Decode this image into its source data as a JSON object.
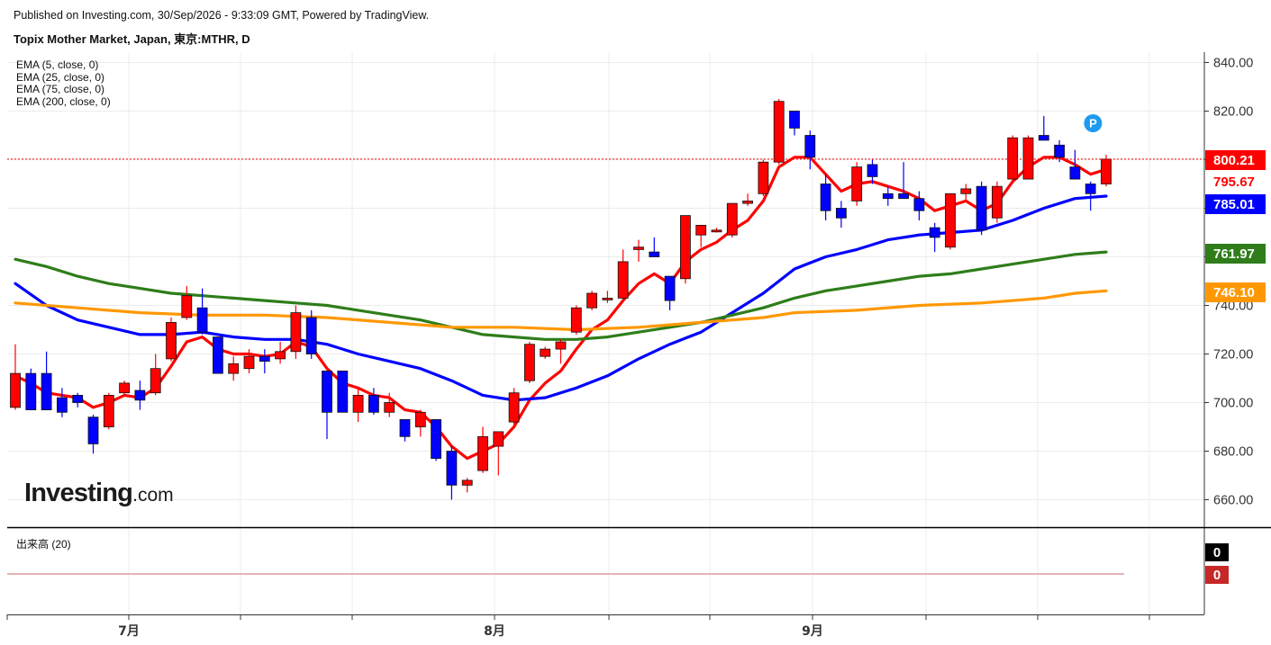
{
  "header": {
    "published": "Published on Investing.com, 30/Sep/2026 - 9:33:09 GMT, Powered by TradingView.",
    "title": "Topix Mother Market, Japan, 東京:MTHR, D"
  },
  "indicators": {
    "ema5": "EMA (5, close, 0)",
    "ema25": "EMA (25, close, 0)",
    "ema75": "EMA (75, close, 0)",
    "ema200": "EMA (200, close, 0)",
    "volume": "出来高 (20)"
  },
  "logo": {
    "main": "Investing",
    "suffix": ".com"
  },
  "colors": {
    "up": "#ff0000",
    "down": "#0000ff",
    "ema5": "#ff0000",
    "ema25": "#0000ff",
    "ema75": "#2e7d1a",
    "ema200": "#ff9800",
    "grid": "#ececec"
  },
  "chart_data": {
    "type": "candlestick",
    "y_range": [
      650,
      845
    ],
    "y_ticks": [
      "840.00",
      "820.00",
      "800.00",
      "780.00",
      "760.00",
      "740.00",
      "720.00",
      "700.00",
      "680.00",
      "660.00"
    ],
    "x_labels": [
      "7月",
      "8月",
      "9月"
    ],
    "last_price_line": 800.21,
    "price_tags": [
      {
        "value": 800.21,
        "label": "800.21",
        "bg": "#ff0000",
        "color": "#ffffff"
      },
      {
        "value": 795.67,
        "label": "795.67",
        "bg": "#ffffff",
        "color": "#ff0000"
      },
      {
        "value": 785.01,
        "label": "785.01",
        "bg": "#0000ff",
        "color": "#ffffff"
      },
      {
        "value": 761.97,
        "label": "761.97",
        "bg": "#2e7d1a",
        "color": "#ffffff"
      },
      {
        "value": 746.1,
        "label": "746.10",
        "bg": "#ff9800",
        "color": "#ffffff"
      }
    ],
    "marker": {
      "label": "P",
      "candle_index": 68,
      "value": 819.5
    },
    "candles": [
      {
        "o": 698,
        "h": 724,
        "l": 697,
        "c": 712
      },
      {
        "o": 712,
        "h": 714,
        "l": 697,
        "c": 697
      },
      {
        "o": 712,
        "h": 721,
        "l": 697,
        "c": 697
      },
      {
        "o": 702,
        "h": 706,
        "l": 694,
        "c": 696
      },
      {
        "o": 703,
        "h": 704,
        "l": 698,
        "c": 700
      },
      {
        "o": 694,
        "h": 695,
        "l": 679,
        "c": 683
      },
      {
        "o": 690,
        "h": 704,
        "l": 689,
        "c": 703
      },
      {
        "o": 704,
        "h": 709,
        "l": 703,
        "c": 708
      },
      {
        "o": 705,
        "h": 709,
        "l": 697,
        "c": 701
      },
      {
        "o": 704,
        "h": 720,
        "l": 703,
        "c": 714
      },
      {
        "o": 718,
        "h": 735,
        "l": 717,
        "c": 733
      },
      {
        "o": 735,
        "h": 748,
        "l": 734,
        "c": 744
      },
      {
        "o": 739,
        "h": 747,
        "l": 728,
        "c": 729
      },
      {
        "o": 727,
        "h": 727,
        "l": 712,
        "c": 712
      },
      {
        "o": 712,
        "h": 719,
        "l": 709,
        "c": 716
      },
      {
        "o": 714,
        "h": 722,
        "l": 712,
        "c": 719
      },
      {
        "o": 719,
        "h": 722,
        "l": 712,
        "c": 717
      },
      {
        "o": 718,
        "h": 725,
        "l": 716,
        "c": 721
      },
      {
        "o": 721,
        "h": 740,
        "l": 718,
        "c": 737
      },
      {
        "o": 735,
        "h": 738,
        "l": 718,
        "c": 720
      },
      {
        "o": 713,
        "h": 713,
        "l": 685,
        "c": 696
      },
      {
        "o": 713,
        "h": 713,
        "l": 696,
        "c": 696
      },
      {
        "o": 696,
        "h": 706,
        "l": 692,
        "c": 703
      },
      {
        "o": 703,
        "h": 706,
        "l": 695,
        "c": 696
      },
      {
        "o": 696,
        "h": 704,
        "l": 694,
        "c": 700
      },
      {
        "o": 693,
        "h": 693,
        "l": 684,
        "c": 686
      },
      {
        "o": 690,
        "h": 697,
        "l": 686,
        "c": 696
      },
      {
        "o": 693,
        "h": 693,
        "l": 676,
        "c": 677
      },
      {
        "o": 680,
        "h": 682,
        "l": 660,
        "c": 666
      },
      {
        "o": 666,
        "h": 669,
        "l": 663,
        "c": 668
      },
      {
        "o": 672,
        "h": 690,
        "l": 671,
        "c": 686
      },
      {
        "o": 682,
        "h": 688,
        "l": 670,
        "c": 688
      },
      {
        "o": 692,
        "h": 706,
        "l": 690,
        "c": 704
      },
      {
        "o": 709,
        "h": 725,
        "l": 708,
        "c": 724
      },
      {
        "o": 719,
        "h": 723,
        "l": 718,
        "c": 722
      },
      {
        "o": 722,
        "h": 726,
        "l": 716,
        "c": 725
      },
      {
        "o": 729,
        "h": 740,
        "l": 728,
        "c": 739
      },
      {
        "o": 739,
        "h": 746,
        "l": 738,
        "c": 745
      },
      {
        "o": 743,
        "h": 746,
        "l": 741,
        "c": 743
      },
      {
        "o": 743,
        "h": 763,
        "l": 742,
        "c": 758
      },
      {
        "o": 763,
        "h": 767,
        "l": 758,
        "c": 764
      },
      {
        "o": 762,
        "h": 768,
        "l": 760,
        "c": 760
      },
      {
        "o": 752,
        "h": 752,
        "l": 738,
        "c": 742
      },
      {
        "o": 751,
        "h": 777,
        "l": 749,
        "c": 777
      },
      {
        "o": 769,
        "h": 773,
        "l": 764,
        "c": 773
      },
      {
        "o": 771,
        "h": 772,
        "l": 770,
        "c": 771
      },
      {
        "o": 769,
        "h": 782,
        "l": 768,
        "c": 782
      },
      {
        "o": 782,
        "h": 786,
        "l": 781,
        "c": 783
      },
      {
        "o": 786,
        "h": 800,
        "l": 785,
        "c": 799
      },
      {
        "o": 799,
        "h": 825,
        "l": 798,
        "c": 824
      },
      {
        "o": 820,
        "h": 820,
        "l": 810,
        "c": 813
      },
      {
        "o": 810,
        "h": 812,
        "l": 796,
        "c": 801
      },
      {
        "o": 790,
        "h": 794,
        "l": 775,
        "c": 779
      },
      {
        "o": 780,
        "h": 783,
        "l": 772,
        "c": 776
      },
      {
        "o": 783,
        "h": 799,
        "l": 781,
        "c": 797
      },
      {
        "o": 798,
        "h": 800,
        "l": 790,
        "c": 793
      },
      {
        "o": 786,
        "h": 789,
        "l": 781,
        "c": 784
      },
      {
        "o": 786,
        "h": 799,
        "l": 784,
        "c": 784
      },
      {
        "o": 784,
        "h": 787,
        "l": 775,
        "c": 779
      },
      {
        "o": 772,
        "h": 774,
        "l": 762,
        "c": 768
      },
      {
        "o": 764,
        "h": 786,
        "l": 763,
        "c": 786
      },
      {
        "o": 786,
        "h": 790,
        "l": 783,
        "c": 788
      },
      {
        "o": 789,
        "h": 791,
        "l": 769,
        "c": 771
      },
      {
        "o": 776,
        "h": 791,
        "l": 774,
        "c": 789
      },
      {
        "o": 792,
        "h": 810,
        "l": 790,
        "c": 809
      },
      {
        "o": 792,
        "h": 810,
        "l": 792,
        "c": 809
      },
      {
        "o": 810,
        "h": 818,
        "l": 808,
        "c": 808
      },
      {
        "o": 806,
        "h": 808,
        "l": 799,
        "c": 801
      },
      {
        "o": 797,
        "h": 804,
        "l": 792,
        "c": 792
      },
      {
        "o": 790,
        "h": 791,
        "l": 779,
        "c": 786
      },
      {
        "o": 790,
        "h": 802,
        "l": 789,
        "c": 800.21
      }
    ],
    "series": [
      {
        "key": "ema5",
        "points": [
          [
            0,
            711
          ],
          [
            1,
            708
          ],
          [
            2,
            704
          ],
          [
            3,
            703
          ],
          [
            4,
            702
          ],
          [
            5,
            698
          ],
          [
            6,
            700
          ],
          [
            7,
            703
          ],
          [
            8,
            702
          ],
          [
            9,
            706
          ],
          [
            10,
            715
          ],
          [
            11,
            725
          ],
          [
            12,
            727
          ],
          [
            13,
            722
          ],
          [
            14,
            720
          ],
          [
            15,
            720
          ],
          [
            16,
            719
          ],
          [
            17,
            720
          ],
          [
            18,
            725
          ],
          [
            19,
            723
          ],
          [
            20,
            714
          ],
          [
            21,
            708
          ],
          [
            22,
            706
          ],
          [
            23,
            703
          ],
          [
            24,
            702
          ],
          [
            25,
            697
          ],
          [
            26,
            696
          ],
          [
            27,
            690
          ],
          [
            28,
            682
          ],
          [
            29,
            677
          ],
          [
            30,
            680
          ],
          [
            31,
            683
          ],
          [
            32,
            690
          ],
          [
            33,
            701
          ],
          [
            34,
            708
          ],
          [
            35,
            713
          ],
          [
            36,
            722
          ],
          [
            37,
            730
          ],
          [
            38,
            734
          ],
          [
            39,
            742
          ],
          [
            40,
            749
          ],
          [
            41,
            753
          ],
          [
            42,
            749
          ],
          [
            43,
            758
          ],
          [
            44,
            763
          ],
          [
            45,
            766
          ],
          [
            46,
            771
          ],
          [
            47,
            775
          ],
          [
            48,
            783
          ],
          [
            49,
            797
          ],
          [
            50,
            801
          ],
          [
            51,
            801
          ],
          [
            52,
            794
          ],
          [
            53,
            787
          ],
          [
            54,
            790
          ],
          [
            55,
            791
          ],
          [
            56,
            789
          ],
          [
            57,
            787
          ],
          [
            58,
            784
          ],
          [
            59,
            779
          ],
          [
            60,
            781
          ],
          [
            61,
            783
          ],
          [
            62,
            779
          ],
          [
            63,
            782
          ],
          [
            64,
            791
          ],
          [
            65,
            797
          ],
          [
            66,
            801
          ],
          [
            67,
            801
          ],
          [
            68,
            798
          ],
          [
            69,
            794
          ],
          [
            70,
            796
          ]
        ]
      },
      {
        "key": "ema25",
        "points": [
          [
            0,
            749
          ],
          [
            2,
            740
          ],
          [
            4,
            734
          ],
          [
            6,
            731
          ],
          [
            8,
            728
          ],
          [
            10,
            728
          ],
          [
            12,
            729
          ],
          [
            14,
            727
          ],
          [
            16,
            726
          ],
          [
            18,
            726
          ],
          [
            20,
            724
          ],
          [
            22,
            720
          ],
          [
            24,
            717
          ],
          [
            26,
            714
          ],
          [
            28,
            709
          ],
          [
            30,
            703
          ],
          [
            32,
            701
          ],
          [
            34,
            702
          ],
          [
            36,
            706
          ],
          [
            38,
            711
          ],
          [
            40,
            718
          ],
          [
            42,
            724
          ],
          [
            44,
            729
          ],
          [
            46,
            737
          ],
          [
            48,
            745
          ],
          [
            50,
            755
          ],
          [
            52,
            760
          ],
          [
            54,
            763
          ],
          [
            56,
            767
          ],
          [
            58,
            769
          ],
          [
            60,
            770
          ],
          [
            62,
            771
          ],
          [
            64,
            775
          ],
          [
            66,
            780
          ],
          [
            68,
            784
          ],
          [
            70,
            785
          ]
        ]
      },
      {
        "key": "ema75",
        "points": [
          [
            0,
            759
          ],
          [
            2,
            756
          ],
          [
            4,
            752
          ],
          [
            6,
            749
          ],
          [
            8,
            747
          ],
          [
            10,
            745
          ],
          [
            12,
            744
          ],
          [
            14,
            743
          ],
          [
            16,
            742
          ],
          [
            18,
            741
          ],
          [
            20,
            740
          ],
          [
            22,
            738
          ],
          [
            24,
            736
          ],
          [
            26,
            734
          ],
          [
            28,
            731
          ],
          [
            30,
            728
          ],
          [
            32,
            727
          ],
          [
            34,
            726
          ],
          [
            36,
            726
          ],
          [
            38,
            727
          ],
          [
            40,
            729
          ],
          [
            42,
            731
          ],
          [
            44,
            733
          ],
          [
            46,
            736
          ],
          [
            48,
            739
          ],
          [
            50,
            743
          ],
          [
            52,
            746
          ],
          [
            54,
            748
          ],
          [
            56,
            750
          ],
          [
            58,
            752
          ],
          [
            60,
            753
          ],
          [
            62,
            755
          ],
          [
            64,
            757
          ],
          [
            66,
            759
          ],
          [
            68,
            761
          ],
          [
            70,
            762
          ]
        ]
      },
      {
        "key": "ema200",
        "points": [
          [
            0,
            741
          ],
          [
            4,
            739
          ],
          [
            8,
            737
          ],
          [
            12,
            736
          ],
          [
            16,
            736
          ],
          [
            20,
            735
          ],
          [
            24,
            733
          ],
          [
            28,
            731
          ],
          [
            32,
            731
          ],
          [
            36,
            730
          ],
          [
            40,
            731
          ],
          [
            44,
            733
          ],
          [
            48,
            735
          ],
          [
            50,
            737
          ],
          [
            54,
            738
          ],
          [
            58,
            740
          ],
          [
            62,
            741
          ],
          [
            66,
            743
          ],
          [
            68,
            745
          ],
          [
            70,
            746
          ]
        ]
      }
    ],
    "volume": {
      "label": "出来高 (20)",
      "last_values": [
        {
          "label": "0",
          "bg": "#000000",
          "color": "#ffffff"
        },
        {
          "label": "0",
          "bg": "#c62828",
          "color": "#ffffff"
        }
      ]
    }
  }
}
